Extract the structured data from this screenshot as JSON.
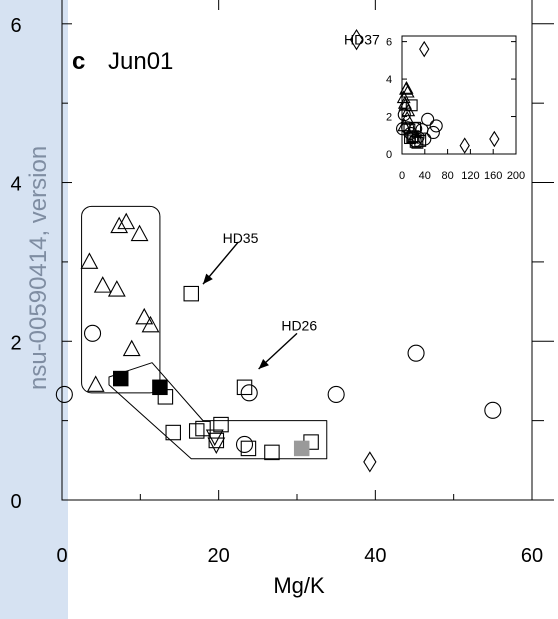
{
  "colors": {
    "sidebar": "#d6e2f2",
    "watermark_text": "#7f8da2",
    "axis": "#000000",
    "filled_square": "#000000",
    "gray_square": "#9a9a9a"
  },
  "watermark": "nsu-00590414, version",
  "chart_data": [
    {
      "type": "scatter",
      "panel_label": "c",
      "title": "Jun01",
      "xlabel": "Mg/K",
      "ylabel": "",
      "xlim": [
        0,
        60
      ],
      "ylim": [
        0,
        6.3
      ],
      "x_ticks": [
        0,
        20,
        40,
        60
      ],
      "x_tick_labels": [
        "0",
        "20",
        "40",
        "60"
      ],
      "y_ticks": [
        0,
        2,
        4,
        6
      ],
      "y_tick_labels": [
        "0",
        "2",
        "4",
        "6"
      ],
      "grid": false,
      "series": [
        {
          "marker": "triangle",
          "points": [
            [
              3.5,
              3.0
            ],
            [
              5.2,
              2.7
            ],
            [
              7.0,
              2.65
            ],
            [
              7.3,
              3.45
            ],
            [
              8.2,
              3.5
            ],
            [
              9.9,
              3.35
            ],
            [
              10.5,
              2.3
            ],
            [
              11.3,
              2.2
            ],
            [
              8.9,
              1.9
            ],
            [
              4.3,
              1.45
            ]
          ]
        },
        {
          "marker": "circle",
          "points": [
            [
              0.3,
              1.33
            ],
            [
              3.9,
              2.1
            ],
            [
              23.9,
              1.35
            ],
            [
              35.0,
              1.33
            ],
            [
              45.2,
              1.85
            ],
            [
              55.0,
              1.13
            ],
            [
              23.3,
              0.7
            ]
          ]
        },
        {
          "marker": "square-open",
          "points": [
            [
              16.5,
              2.6
            ],
            [
              13.2,
              1.3
            ],
            [
              14.2,
              0.85
            ],
            [
              17.2,
              0.87
            ],
            [
              18.0,
              0.9
            ],
            [
              19.7,
              0.75
            ],
            [
              20.3,
              0.95
            ],
            [
              23.8,
              0.65
            ],
            [
              26.8,
              0.6
            ],
            [
              31.8,
              0.73
            ],
            [
              23.3,
              1.42
            ]
          ]
        },
        {
          "marker": "square-filled",
          "points": [
            [
              7.5,
              1.53
            ],
            [
              12.5,
              1.42
            ]
          ]
        },
        {
          "marker": "square-gray",
          "points": [
            [
              30.6,
              0.65
            ]
          ]
        },
        {
          "marker": "triangle-down",
          "points": [
            [
              19.7,
              0.7
            ],
            [
              19.5,
              0.8
            ]
          ]
        },
        {
          "marker": "diamond",
          "points": [
            [
              39.3,
              0.48
            ],
            [
              37.6,
              5.8
            ]
          ]
        }
      ],
      "annotations": [
        {
          "text": "HD35",
          "x": 16.5,
          "y": 2.6,
          "arrow_from": [
            22.5,
            3.25
          ],
          "arrow_to": [
            18.0,
            2.72
          ],
          "text_at": [
            20.5,
            3.3
          ]
        },
        {
          "text": "HD26",
          "x": 24.5,
          "y": 1.45,
          "arrow_from": [
            30.0,
            2.1
          ],
          "arrow_to": [
            25.1,
            1.65
          ],
          "text_at": [
            28.0,
            2.2
          ]
        },
        {
          "text": "HD37",
          "x": 37.6,
          "y": 5.8,
          "text_at": [
            36.0,
            5.8
          ]
        }
      ],
      "regions": [
        {
          "name": "triangle-group",
          "shape": "rounded-rect",
          "x": [
            2.5,
            12.5
          ],
          "y": [
            1.35,
            3.7
          ]
        },
        {
          "name": "square-group",
          "shape": "polygon",
          "points": [
            [
              6.0,
              1.55
            ],
            [
              11.5,
              1.73
            ],
            [
              18.0,
              1.0
            ],
            [
              33.8,
              1.0
            ],
            [
              33.8,
              0.52
            ],
            [
              16.5,
              0.52
            ],
            [
              6.0,
              1.45
            ]
          ]
        }
      ]
    },
    {
      "type": "scatter",
      "role": "inset",
      "xlim": [
        0,
        200
      ],
      "ylim": [
        0,
        6.3
      ],
      "x_ticks": [
        0,
        40,
        80,
        120,
        160,
        200
      ],
      "x_tick_labels": [
        "0",
        "40",
        "80",
        "120",
        "160",
        "200"
      ],
      "y_ticks": [
        0,
        2,
        4,
        6
      ],
      "y_tick_labels": [
        "0",
        "2",
        "4",
        "6"
      ],
      "series": [
        {
          "marker": "triangle",
          "points": [
            [
              3,
              3.0
            ],
            [
              5,
              2.7
            ],
            [
              7,
              3.45
            ],
            [
              8,
              3.5
            ],
            [
              10,
              3.3
            ],
            [
              11,
              2.3
            ],
            [
              9,
              1.9
            ],
            [
              4,
              1.5
            ],
            [
              6,
              2.6
            ]
          ]
        },
        {
          "marker": "circle",
          "points": [
            [
              1,
              1.35
            ],
            [
              4,
              2.1
            ],
            [
              24,
              1.35
            ],
            [
              35,
              1.3
            ],
            [
              45,
              1.85
            ],
            [
              55,
              1.15
            ],
            [
              23,
              0.7
            ],
            [
              15,
              1.1
            ],
            [
              10,
              1.4
            ],
            [
              60,
              1.5
            ],
            [
              28,
              0.9
            ],
            [
              40,
              0.8
            ]
          ]
        },
        {
          "marker": "square-open",
          "points": [
            [
              17,
              2.6
            ],
            [
              13,
              1.3
            ],
            [
              14,
              0.85
            ],
            [
              18,
              0.9
            ],
            [
              20,
              0.95
            ],
            [
              24,
              0.65
            ],
            [
              27,
              0.6
            ],
            [
              32,
              0.7
            ],
            [
              23,
              1.4
            ]
          ]
        },
        {
          "marker": "diamond",
          "points": [
            [
              39,
              5.6
            ],
            [
              110,
              0.45
            ],
            [
              162,
              0.8
            ]
          ]
        }
      ]
    }
  ]
}
